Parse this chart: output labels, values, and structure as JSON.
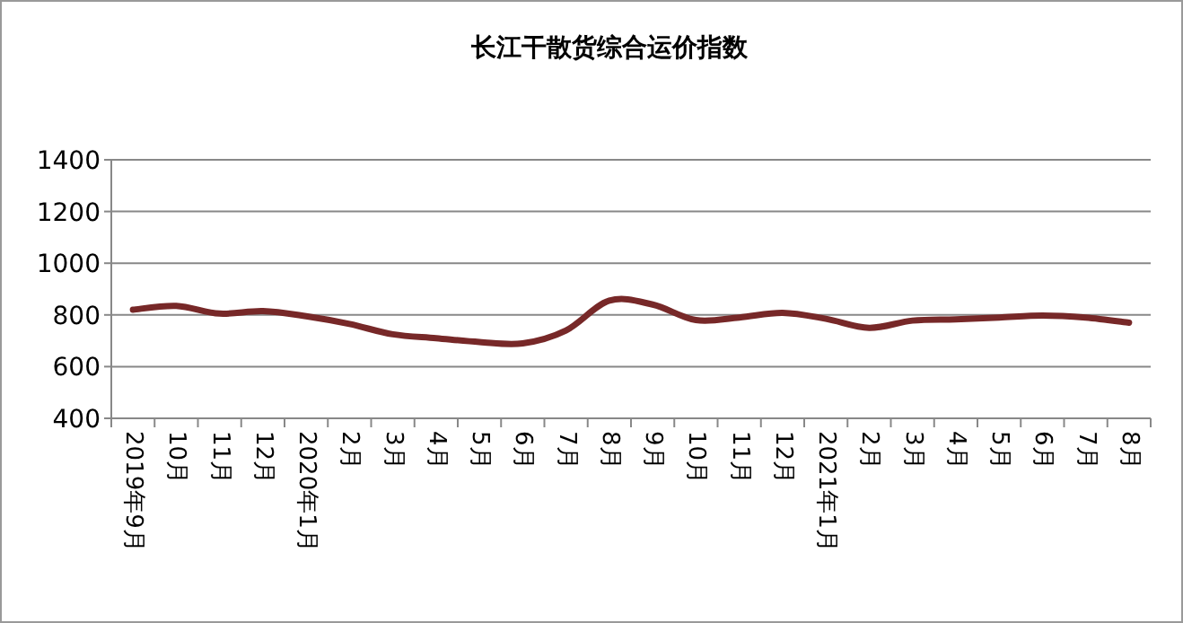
{
  "chart_data": {
    "type": "line",
    "title": "长江干散货综合运价指数",
    "categories": [
      "2019年9月",
      "10月",
      "11月",
      "12月",
      "2020年1月",
      "2月",
      "3月",
      "4月",
      "5月",
      "6月",
      "7月",
      "8月",
      "9月",
      "10月",
      "11月",
      "12月",
      "2021年1月",
      "2月",
      "3月",
      "4月",
      "5月",
      "6月",
      "7月",
      "8月"
    ],
    "series": [
      {
        "color": "#772828",
        "values": [
          820,
          835,
          805,
          815,
          795,
          765,
          725,
          710,
          695,
          690,
          740,
          855,
          840,
          780,
          790,
          808,
          785,
          750,
          778,
          783,
          790,
          798,
          790,
          770
        ]
      }
    ],
    "ylim": [
      400,
      1400
    ],
    "yticks": [
      400,
      600,
      800,
      1000,
      1200,
      1400
    ],
    "grid": "y",
    "marker": "none",
    "line_style": "solid"
  }
}
